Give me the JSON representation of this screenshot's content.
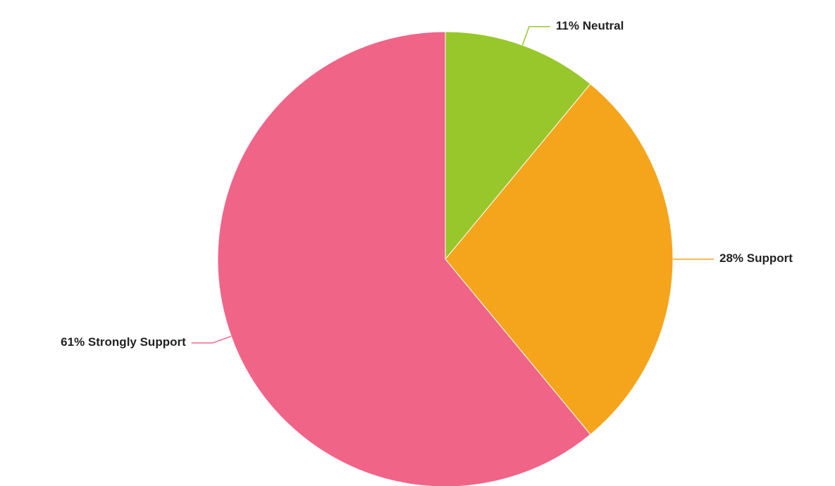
{
  "chart_data": {
    "type": "pie",
    "categories": [
      "Neutral",
      "Support",
      "Strongly Support"
    ],
    "values": [
      11,
      28,
      61
    ],
    "value_labels": [
      "11%",
      "28%",
      "61%"
    ],
    "colors": [
      "#97c72b",
      "#f5a51b",
      "#f06488"
    ]
  }
}
